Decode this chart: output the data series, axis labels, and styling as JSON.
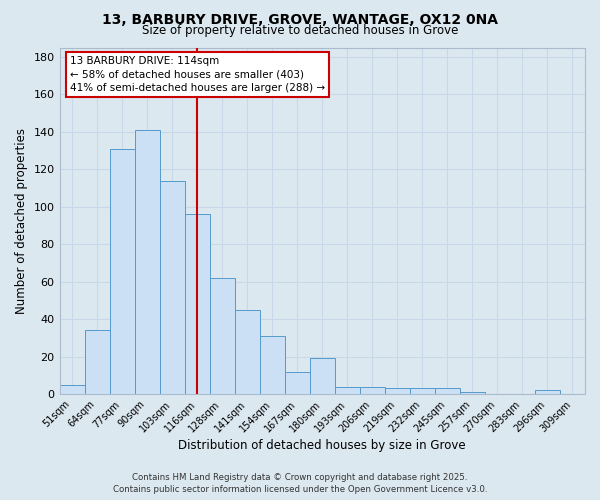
{
  "title_line1": "13, BARBURY DRIVE, GROVE, WANTAGE, OX12 0NA",
  "title_line2": "Size of property relative to detached houses in Grove",
  "xlabel": "Distribution of detached houses by size in Grove",
  "ylabel": "Number of detached properties",
  "categories": [
    "51sqm",
    "64sqm",
    "77sqm",
    "90sqm",
    "103sqm",
    "116sqm",
    "128sqm",
    "141sqm",
    "154sqm",
    "167sqm",
    "180sqm",
    "193sqm",
    "206sqm",
    "219sqm",
    "232sqm",
    "245sqm",
    "257sqm",
    "270sqm",
    "283sqm",
    "296sqm",
    "309sqm"
  ],
  "values": [
    5,
    34,
    131,
    141,
    114,
    96,
    62,
    45,
    31,
    12,
    19,
    4,
    4,
    3,
    3,
    3,
    1,
    0,
    0,
    2,
    0
  ],
  "bar_color": "#cce0f5",
  "bar_edge_color": "#5599cc",
  "highlight_index": 5,
  "vline_x": 5,
  "vline_color": "#cc0000",
  "annotation_text": "13 BARBURY DRIVE: 114sqm\n← 58% of detached houses are smaller (403)\n41% of semi-detached houses are larger (288) →",
  "annotation_box_color": "#ffffff",
  "annotation_box_edge_color": "#cc0000",
  "ylim": [
    0,
    185
  ],
  "yticks": [
    0,
    20,
    40,
    60,
    80,
    100,
    120,
    140,
    160,
    180
  ],
  "grid_color": "#c8d8e8",
  "background_color": "#dce8f0",
  "footer_line1": "Contains HM Land Registry data © Crown copyright and database right 2025.",
  "footer_line2": "Contains public sector information licensed under the Open Government Licence v3.0."
}
